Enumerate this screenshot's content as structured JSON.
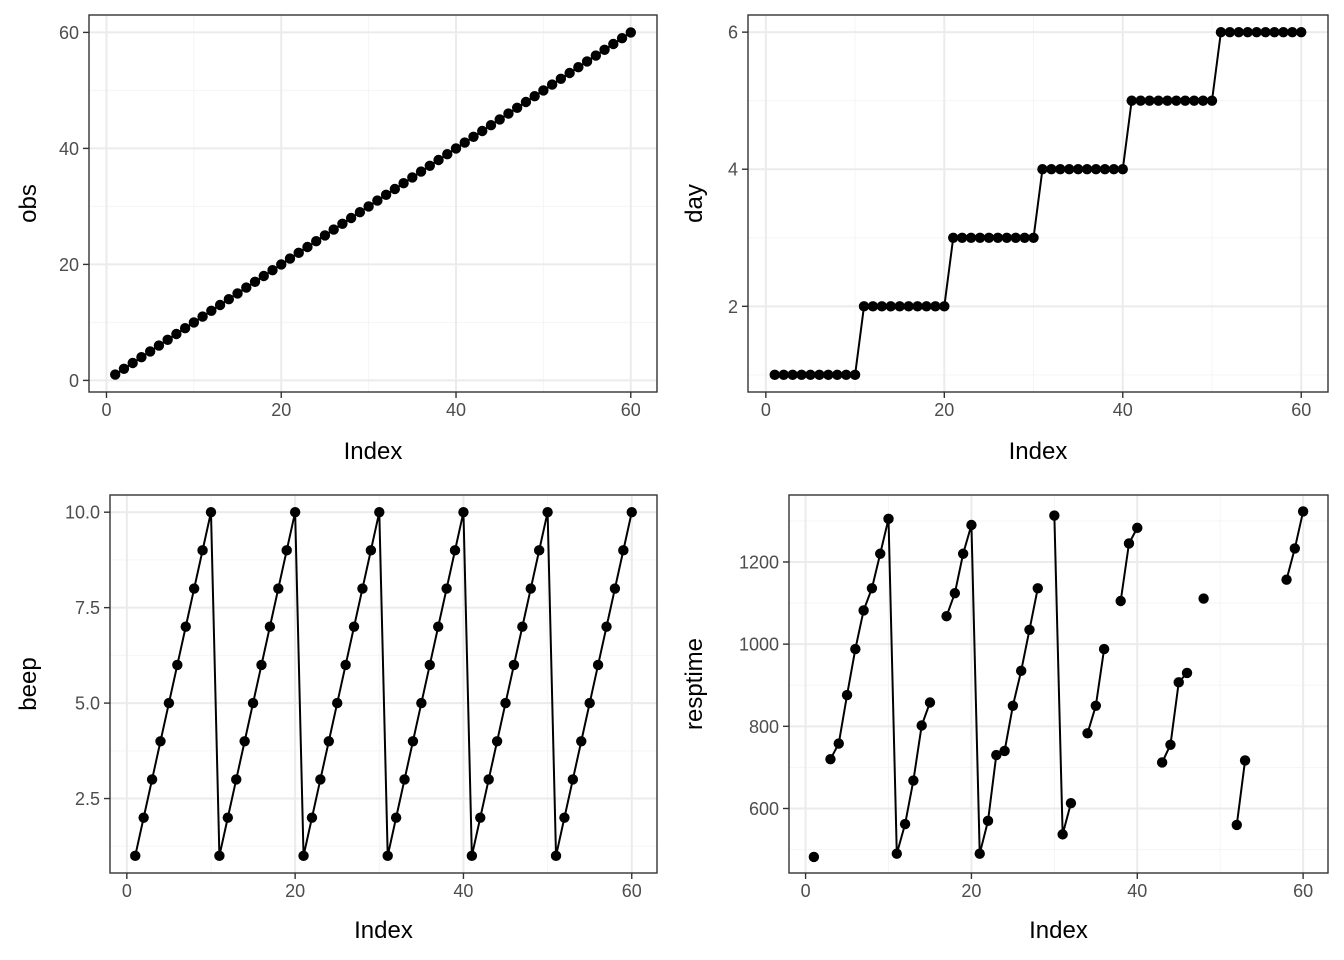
{
  "colors": {
    "background": "#ffffff",
    "panel_border": "#333333",
    "grid_major": "#ebebeb",
    "grid_minor": "#f5f5f5",
    "tick_text": "#4d4d4d",
    "ink": "#000000"
  },
  "chart_data": [
    {
      "type": "line",
      "xlabel": "Index",
      "ylabel": "obs",
      "xlim": [
        -2,
        63
      ],
      "ylim": [
        -2,
        63
      ],
      "xticks": [
        0,
        20,
        40,
        60
      ],
      "xtick_labels": [
        "0",
        "20",
        "40",
        "60"
      ],
      "yticks": [
        0,
        20,
        40,
        60
      ],
      "ytick_labels": [
        "0",
        "20",
        "40",
        "60"
      ],
      "grid": true,
      "markers": true,
      "series": [
        {
          "values": [
            1,
            2,
            3,
            4,
            5,
            6,
            7,
            8,
            9,
            10,
            11,
            12,
            13,
            14,
            15,
            16,
            17,
            18,
            19,
            20,
            21,
            22,
            23,
            24,
            25,
            26,
            27,
            28,
            29,
            30,
            31,
            32,
            33,
            34,
            35,
            36,
            37,
            38,
            39,
            40,
            41,
            42,
            43,
            44,
            45,
            46,
            47,
            48,
            49,
            50,
            51,
            52,
            53,
            54,
            55,
            56,
            57,
            58,
            59,
            60
          ]
        }
      ]
    },
    {
      "type": "line",
      "xlabel": "Index",
      "ylabel": "day",
      "xlim": [
        -2,
        63
      ],
      "ylim": [
        0.75,
        6.25
      ],
      "xticks": [
        0,
        20,
        40,
        60
      ],
      "xtick_labels": [
        "0",
        "20",
        "40",
        "60"
      ],
      "yticks": [
        2,
        4,
        6
      ],
      "ytick_labels": [
        "2",
        "4",
        "6"
      ],
      "grid": true,
      "markers": true,
      "series": [
        {
          "values": [
            1,
            1,
            1,
            1,
            1,
            1,
            1,
            1,
            1,
            1,
            2,
            2,
            2,
            2,
            2,
            2,
            2,
            2,
            2,
            2,
            3,
            3,
            3,
            3,
            3,
            3,
            3,
            3,
            3,
            3,
            4,
            4,
            4,
            4,
            4,
            4,
            4,
            4,
            4,
            4,
            5,
            5,
            5,
            5,
            5,
            5,
            5,
            5,
            5,
            5,
            6,
            6,
            6,
            6,
            6,
            6,
            6,
            6,
            6,
            6
          ]
        }
      ]
    },
    {
      "type": "line",
      "xlabel": "Index",
      "ylabel": "beep",
      "xlim": [
        -2,
        63
      ],
      "ylim": [
        0.55,
        10.45
      ],
      "xticks": [
        0,
        20,
        40,
        60
      ],
      "xtick_labels": [
        "0",
        "20",
        "40",
        "60"
      ],
      "yticks": [
        2.5,
        5.0,
        7.5,
        10.0
      ],
      "ytick_labels": [
        "2.5",
        "5.0",
        "7.5",
        "10.0"
      ],
      "grid": true,
      "markers": true,
      "series": [
        {
          "values": [
            1,
            2,
            3,
            4,
            5,
            6,
            7,
            8,
            9,
            10,
            1,
            2,
            3,
            4,
            5,
            6,
            7,
            8,
            9,
            10,
            1,
            2,
            3,
            4,
            5,
            6,
            7,
            8,
            9,
            10,
            1,
            2,
            3,
            4,
            5,
            6,
            7,
            8,
            9,
            10,
            1,
            2,
            3,
            4,
            5,
            6,
            7,
            8,
            9,
            10,
            1,
            2,
            3,
            4,
            5,
            6,
            7,
            8,
            9,
            10
          ]
        }
      ]
    },
    {
      "type": "line",
      "xlabel": "Index",
      "ylabel": "resptime",
      "xlim": [
        -2,
        63
      ],
      "ylim": [
        443,
        1363
      ],
      "xticks": [
        0,
        20,
        40,
        60
      ],
      "xtick_labels": [
        "0",
        "20",
        "40",
        "60"
      ],
      "yticks": [
        600,
        800,
        1000,
        1200
      ],
      "ytick_labels": [
        "600",
        "800",
        "1000",
        "1200"
      ],
      "grid": true,
      "markers": true,
      "series": [
        {
          "values": [
            482,
            null,
            720,
            758,
            876,
            988,
            1082,
            1136,
            1220,
            1305,
            490,
            562,
            668,
            802,
            858,
            null,
            1068,
            1124,
            1220,
            1290,
            490,
            570,
            730,
            740,
            850,
            935,
            1035,
            1136,
            null,
            1313,
            537,
            613,
            null,
            783,
            850,
            988,
            null,
            1105,
            1245,
            1283,
            null,
            null,
            712,
            755,
            907,
            930,
            null,
            1111,
            null,
            null,
            null,
            560,
            717,
            null,
            null,
            null,
            null,
            1157,
            1233,
            1323
          ]
        }
      ]
    }
  ]
}
